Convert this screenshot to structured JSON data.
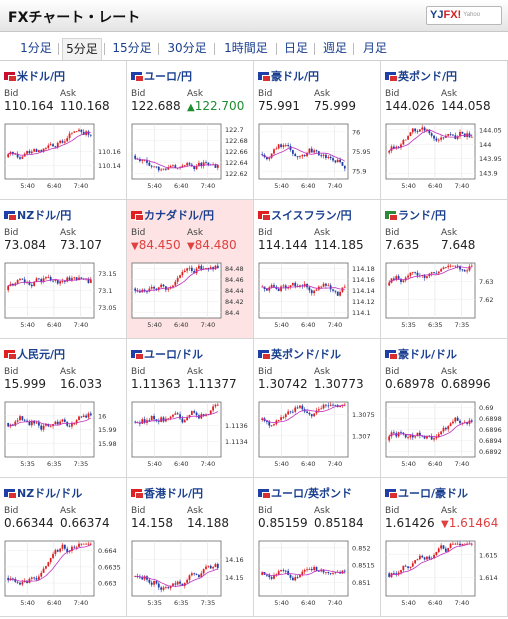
{
  "header": {
    "title": "FXチャート・レート",
    "logo_main": "YJFX!",
    "logo_sub": "Yahoo"
  },
  "tabs": [
    "1分足",
    "5分足",
    "15分足",
    "30分足",
    "1時間足",
    "日足",
    "週足",
    "月足"
  ],
  "active_tab": "5分足",
  "colors": {
    "link": "#1a3f8f",
    "up_candle": "#e02020",
    "down_candle": "#1f3fa8",
    "ma": "#c030c0",
    "highlight": "#fde3e3",
    "down_text": "#e04040",
    "up_text": "#1f8c2f"
  },
  "bid_label": "Bid",
  "ask_label": "Ask",
  "pairs": [
    {
      "name": "米ドル/円",
      "bid": "110.164",
      "ask": "110.168",
      "bid_dir": "",
      "ask_dir": "",
      "bid_arrow": "",
      "ask_arrow": "",
      "flags": [
        "#c8102e",
        "#ffffff"
      ],
      "yticks": [
        "110.16",
        "110.14"
      ],
      "ylim": [
        110.12,
        110.2
      ],
      "xticks": [
        "5:40",
        "6:40",
        "7:40"
      ],
      "highlight": false
    },
    {
      "name": "ユーロ/円",
      "bid": "122.688",
      "ask": "122.700",
      "bid_dir": "",
      "ask_dir": "up",
      "bid_arrow": "",
      "ask_arrow": "▲",
      "flags": [
        "#1f3fa8",
        "#ffffff"
      ],
      "yticks": [
        "122.7",
        "122.68",
        "122.66",
        "122.64",
        "122.62"
      ],
      "ylim": [
        122.61,
        122.71
      ],
      "xticks": [
        "5:40",
        "6:40",
        "7:40"
      ],
      "highlight": false
    },
    {
      "name": "豪ドル/円",
      "bid": "75.991",
      "ask": "75.999",
      "bid_dir": "",
      "ask_dir": "",
      "bid_arrow": "",
      "ask_arrow": "",
      "flags": [
        "#1f3fa8",
        "#ffffff"
      ],
      "yticks": [
        "76",
        "75.95",
        "75.9"
      ],
      "ylim": [
        75.88,
        76.02
      ],
      "xticks": [
        "5:40",
        "6:40",
        "7:40"
      ],
      "highlight": false
    },
    {
      "name": "英ポンド/円",
      "bid": "144.026",
      "ask": "144.058",
      "bid_dir": "",
      "ask_dir": "",
      "bid_arrow": "",
      "ask_arrow": "",
      "flags": [
        "#1f3fa8",
        "#ffffff"
      ],
      "yticks": [
        "144.05",
        "144",
        "143.95",
        "143.9"
      ],
      "ylim": [
        143.88,
        144.07
      ],
      "xticks": [
        "5:40",
        "6:40",
        "7:40"
      ],
      "highlight": false
    },
    {
      "name": "NZドル/円",
      "bid": "73.084",
      "ask": "73.107",
      "bid_dir": "",
      "ask_dir": "",
      "bid_arrow": "",
      "ask_arrow": "",
      "flags": [
        "#1f3fa8",
        "#ffffff"
      ],
      "yticks": [
        "73.15",
        "73.1",
        "73.05"
      ],
      "ylim": [
        73.02,
        73.18
      ],
      "xticks": [
        "5:40",
        "6:40",
        "7:40"
      ],
      "highlight": false
    },
    {
      "name": "カナダドル/円",
      "bid": "84.450",
      "ask": "84.480",
      "bid_dir": "down",
      "ask_dir": "down",
      "bid_arrow": "▼",
      "ask_arrow": "▼",
      "flags": [
        "#e02020",
        "#ffffff"
      ],
      "yticks": [
        "84.48",
        "84.46",
        "84.44",
        "84.42",
        "84.4"
      ],
      "ylim": [
        84.39,
        84.49
      ],
      "xticks": [
        "5:40",
        "6:40",
        "7:40"
      ],
      "highlight": true
    },
    {
      "name": "スイスフラン/円",
      "bid": "114.144",
      "ask": "114.185",
      "bid_dir": "",
      "ask_dir": "",
      "bid_arrow": "",
      "ask_arrow": "",
      "flags": [
        "#e02020",
        "#ffffff"
      ],
      "yticks": [
        "114.18",
        "114.16",
        "114.14",
        "114.12",
        "114.1"
      ],
      "ylim": [
        114.09,
        114.19
      ],
      "xticks": [
        "5:40",
        "6:40",
        "7:40"
      ],
      "highlight": false
    },
    {
      "name": "ランド/円",
      "bid": "7.635",
      "ask": "7.648",
      "bid_dir": "",
      "ask_dir": "",
      "bid_arrow": "",
      "ask_arrow": "",
      "flags": [
        "#2a8a3a",
        "#ffffff"
      ],
      "yticks": [
        "7.63",
        "7.62"
      ],
      "ylim": [
        7.61,
        7.64
      ],
      "xticks": [
        "5:35",
        "6:35",
        "7:35"
      ],
      "highlight": false
    },
    {
      "name": "人民元/円",
      "bid": "15.999",
      "ask": "16.033",
      "bid_dir": "",
      "ask_dir": "",
      "bid_arrow": "",
      "ask_arrow": "",
      "flags": [
        "#e02020",
        "#ffffff"
      ],
      "yticks": [
        "16",
        "15.99",
        "15.98"
      ],
      "ylim": [
        15.97,
        16.01
      ],
      "xticks": [
        "5:35",
        "6:35",
        "7:35"
      ],
      "highlight": false
    },
    {
      "name": "ユーロ/ドル",
      "bid": "1.11363",
      "ask": "1.11377",
      "bid_dir": "",
      "ask_dir": "",
      "bid_arrow": "",
      "ask_arrow": "",
      "flags": [
        "#1f3fa8",
        "#ffffff"
      ],
      "yticks": [
        "1.1136",
        "1.1134"
      ],
      "ylim": [
        1.1132,
        1.1139
      ],
      "xticks": [
        "5:40",
        "6:40",
        "7:40"
      ],
      "highlight": false
    },
    {
      "name": "英ポンド/ドル",
      "bid": "1.30742",
      "ask": "1.30773",
      "bid_dir": "",
      "ask_dir": "",
      "bid_arrow": "",
      "ask_arrow": "",
      "flags": [
        "#1f3fa8",
        "#e02020"
      ],
      "yticks": [
        "1.3075",
        "1.307"
      ],
      "ylim": [
        1.3065,
        1.3078
      ],
      "xticks": [
        "5:40",
        "6:40",
        "7:40"
      ],
      "highlight": false
    },
    {
      "name": "豪ドル/ドル",
      "bid": "0.68978",
      "ask": "0.68996",
      "bid_dir": "",
      "ask_dir": "",
      "bid_arrow": "",
      "ask_arrow": "",
      "flags": [
        "#1f3fa8",
        "#e02020"
      ],
      "yticks": [
        "0.69",
        "0.6898",
        "0.6896",
        "0.6894",
        "0.6892"
      ],
      "ylim": [
        0.6891,
        0.6901
      ],
      "xticks": [
        "5:40",
        "6:40",
        "7:40"
      ],
      "highlight": false
    },
    {
      "name": "NZドル/ドル",
      "bid": "0.66344",
      "ask": "0.66374",
      "bid_dir": "",
      "ask_dir": "",
      "bid_arrow": "",
      "ask_arrow": "",
      "flags": [
        "#1f3fa8",
        "#e02020"
      ],
      "yticks": [
        "0.664",
        "0.6635",
        "0.663"
      ],
      "ylim": [
        0.6626,
        0.6643
      ],
      "xticks": [
        "5:40",
        "6:40",
        "7:40"
      ],
      "highlight": false
    },
    {
      "name": "香港ドル/円",
      "bid": "14.158",
      "ask": "14.188",
      "bid_dir": "",
      "ask_dir": "",
      "bid_arrow": "",
      "ask_arrow": "",
      "flags": [
        "#e02020",
        "#ffffff"
      ],
      "yticks": [
        "14.16",
        "14.15"
      ],
      "ylim": [
        14.14,
        14.17
      ],
      "xticks": [
        "5:35",
        "6:35",
        "7:35"
      ],
      "highlight": false
    },
    {
      "name": "ユーロ/英ポンド",
      "bid": "0.85159",
      "ask": "0.85184",
      "bid_dir": "",
      "ask_dir": "",
      "bid_arrow": "",
      "ask_arrow": "",
      "flags": [
        "#1f3fa8",
        "#1f3fa8"
      ],
      "yticks": [
        "0.852",
        "0.8515",
        "0.851"
      ],
      "ylim": [
        0.8506,
        0.8522
      ],
      "xticks": [
        "5:40",
        "6:40",
        "7:40"
      ],
      "highlight": false
    },
    {
      "name": "ユーロ/豪ドル",
      "bid": "1.61426",
      "ask": "1.61464",
      "bid_dir": "",
      "ask_dir": "down",
      "bid_arrow": "",
      "ask_arrow": "▼",
      "flags": [
        "#1f3fa8",
        "#1f3fa8"
      ],
      "yticks": [
        "1.615",
        "1.614"
      ],
      "ylim": [
        1.6132,
        1.6156
      ],
      "xticks": [
        "5:40",
        "6:40",
        "7:40"
      ],
      "highlight": false
    }
  ]
}
